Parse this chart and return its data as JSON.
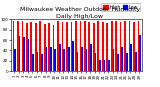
{
  "title": "Milwaukee Weather Outdoor Humidity",
  "subtitle": "Daily High/Low",
  "high_values": [
    97,
    97,
    96,
    93,
    95,
    93,
    97,
    90,
    92,
    89,
    97,
    95,
    95,
    95,
    97,
    96,
    96,
    95,
    93,
    97,
    95,
    93,
    97,
    97,
    95,
    97,
    97,
    95,
    97
  ],
  "low_values": [
    43,
    68,
    65,
    62,
    33,
    38,
    33,
    47,
    47,
    43,
    52,
    42,
    47,
    58,
    38,
    47,
    42,
    53,
    35,
    22,
    22,
    22,
    43,
    33,
    47,
    35,
    52,
    38,
    70
  ],
  "high_color": "#ff0000",
  "low_color": "#0000ff",
  "bg_color": "#ffffff",
  "legend_high_label": "High",
  "legend_low_label": "Low",
  "ylim": [
    0,
    100
  ],
  "y_ticks": [
    0,
    20,
    40,
    60,
    80,
    100
  ],
  "title_fontsize": 4.5,
  "tick_fontsize": 3.0,
  "legend_fontsize": 3.5
}
